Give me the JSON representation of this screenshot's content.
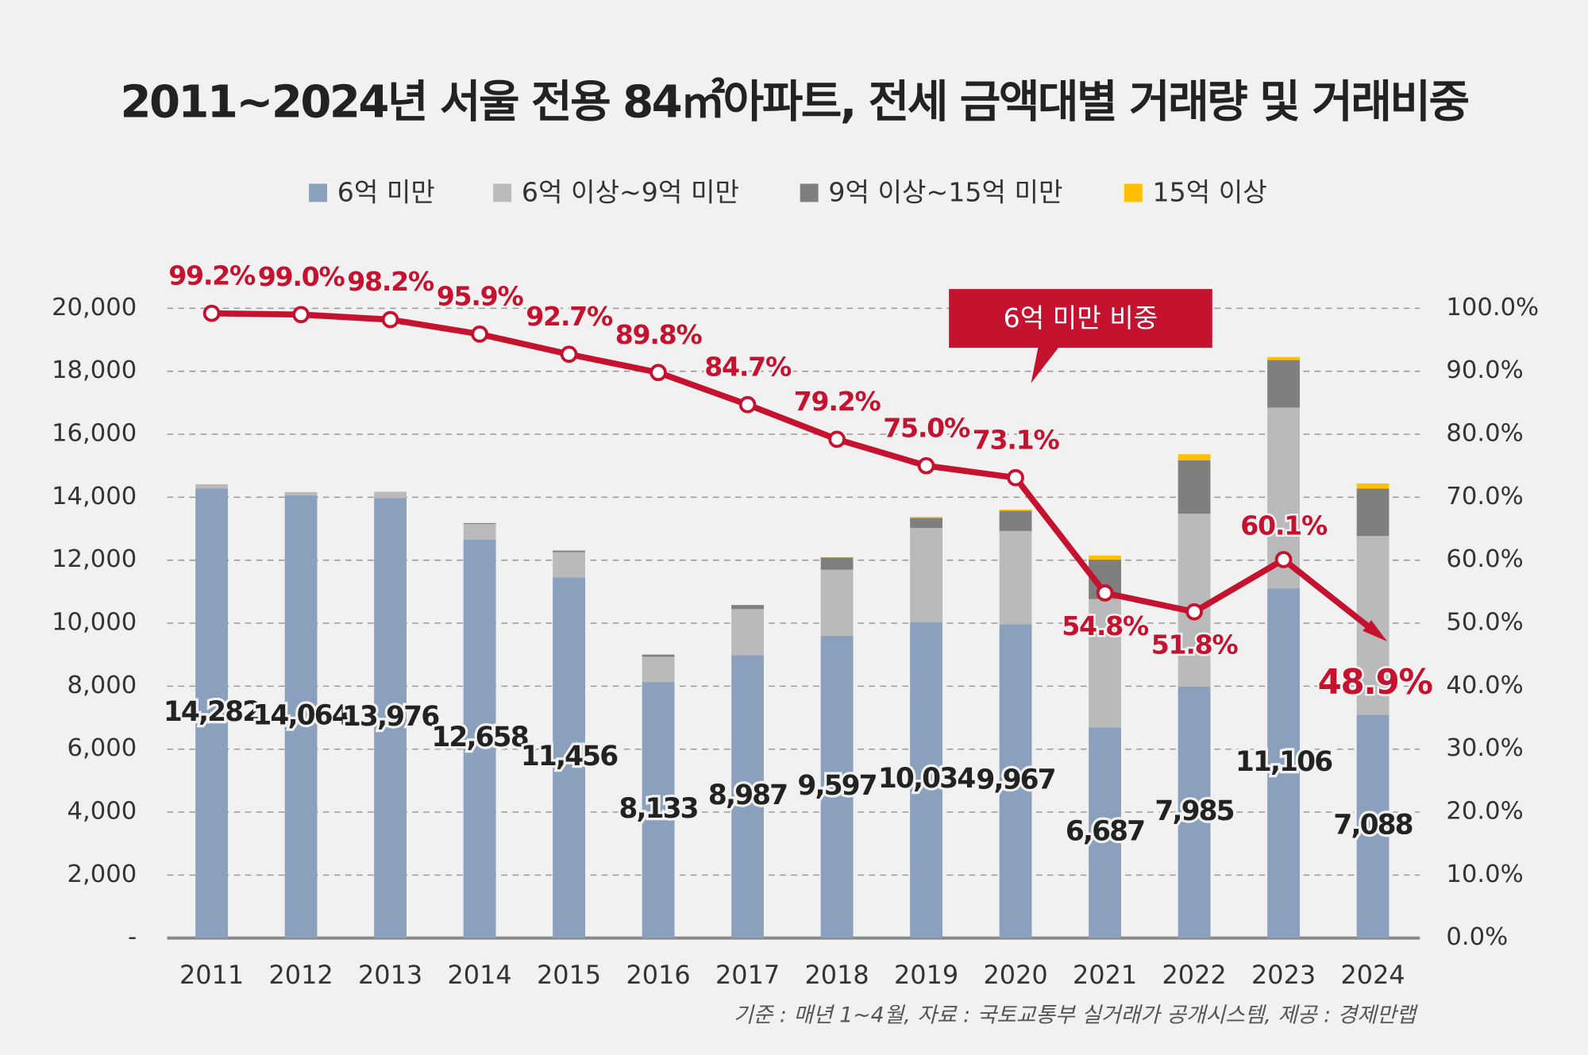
{
  "chart_data": {
    "type": "bar",
    "stacked": true,
    "title": "2011~2024년 서울 전용 84㎡아파트, 전세 금액대별 거래량 및 거래비중",
    "categories": [
      "2011",
      "2012",
      "2013",
      "2014",
      "2015",
      "2016",
      "2017",
      "2018",
      "2019",
      "2020",
      "2021",
      "2022",
      "2023",
      "2024"
    ],
    "series": [
      {
        "name": "6억 미만",
        "color": "#8aa0bc",
        "values": [
          14282,
          14064,
          13976,
          12658,
          11456,
          8133,
          8987,
          9597,
          10034,
          9967,
          6687,
          7985,
          11106,
          7088
        ],
        "value_labels": [
          "14,282",
          "14,064",
          "13,976",
          "12,658",
          "11,456",
          "8,133",
          "8,987",
          "9,597",
          "10,034",
          "9,967",
          "6,687",
          "7,985",
          "11,106",
          "7,088"
        ]
      },
      {
        "name": "6억 이상~9억 미만",
        "color": "#bababa",
        "values": [
          130,
          100,
          200,
          490,
          800,
          800,
          1460,
          2100,
          2990,
          2960,
          4080,
          5490,
          5740,
          5680
        ]
      },
      {
        "name": "9억 이상~15억 미만",
        "color": "#7f7f7f",
        "values": [
          0,
          0,
          0,
          30,
          50,
          70,
          130,
          390,
          320,
          640,
          1250,
          1700,
          1510,
          1510
        ]
      },
      {
        "name": "15억 이상",
        "color": "#ffc000",
        "values": [
          0,
          0,
          0,
          0,
          0,
          0,
          0,
          10,
          30,
          40,
          130,
          190,
          100,
          160
        ]
      },
      {
        "name": "6억 미만 비중",
        "type": "line",
        "axis": "y2",
        "color": "#c4122f",
        "values": [
          99.2,
          99.0,
          98.2,
          95.9,
          92.7,
          89.8,
          84.7,
          79.2,
          75.0,
          73.1,
          54.8,
          51.8,
          60.1,
          48.9
        ],
        "value_labels": [
          "99.2%",
          "99.0%",
          "98.2%",
          "95.9%",
          "92.7%",
          "89.8%",
          "84.7%",
          "79.2%",
          "75.0%",
          "73.1%",
          "54.8%",
          "51.8%",
          "60.1%",
          "48.9%"
        ]
      }
    ],
    "ylim": [
      0,
      20000
    ],
    "yticks": [
      {
        "value": 0,
        "label": "-"
      },
      {
        "value": 2000,
        "label": "2,000"
      },
      {
        "value": 4000,
        "label": "4,000"
      },
      {
        "value": 6000,
        "label": "6,000"
      },
      {
        "value": 8000,
        "label": "8,000"
      },
      {
        "value": 10000,
        "label": "10,000"
      },
      {
        "value": 12000,
        "label": "12,000"
      },
      {
        "value": 14000,
        "label": "14,000"
      },
      {
        "value": 16000,
        "label": "16,000"
      },
      {
        "value": 18000,
        "label": "18,000"
      },
      {
        "value": 20000,
        "label": "20,000"
      }
    ],
    "y2lim": [
      0,
      100
    ],
    "y2ticks": [
      {
        "value": 0,
        "label": "0.0%"
      },
      {
        "value": 10,
        "label": "10.0%"
      },
      {
        "value": 20,
        "label": "20.0%"
      },
      {
        "value": 30,
        "label": "30.0%"
      },
      {
        "value": 40,
        "label": "40.0%"
      },
      {
        "value": 50,
        "label": "50.0%"
      },
      {
        "value": 60,
        "label": "60.0%"
      },
      {
        "value": 70,
        "label": "70.0%"
      },
      {
        "value": 80,
        "label": "80.0%"
      },
      {
        "value": 90,
        "label": "90.0%"
      },
      {
        "value": 100,
        "label": "100.0%"
      }
    ],
    "grid": true,
    "legend": "top",
    "source": "기준 : 매년 1~4월, 자료 : 국토교통부 실거래가 공개시스템, 제공 : 경제만랩"
  }
}
